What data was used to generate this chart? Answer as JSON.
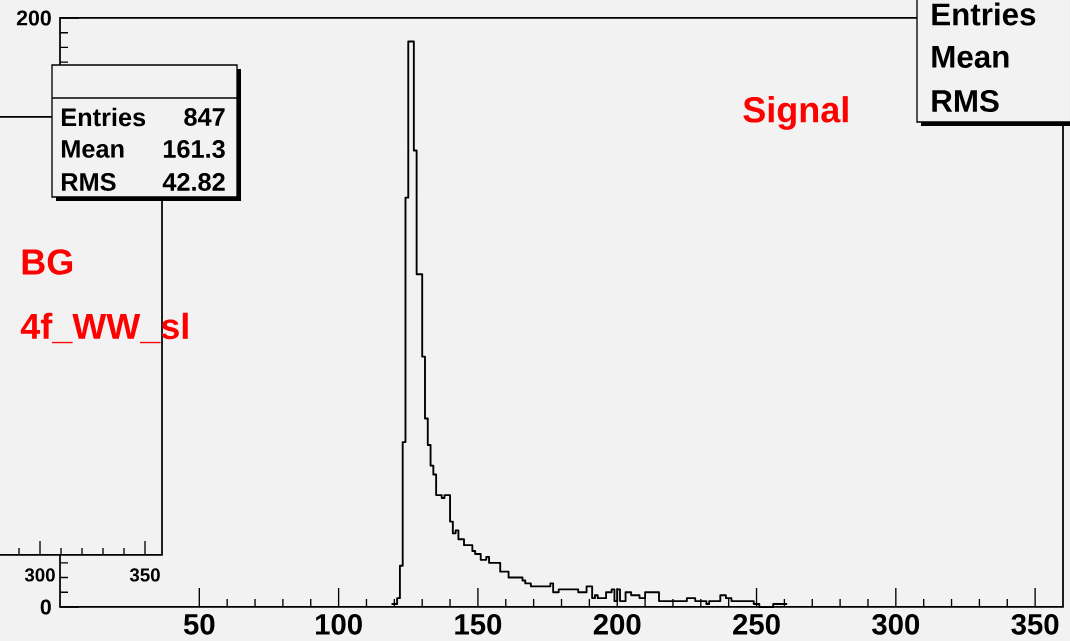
{
  "chart_data": [
    {
      "type": "histogram",
      "color": "#000000",
      "xlim": [
        0,
        360
      ],
      "ylim": [
        0,
        200
      ],
      "xticks": [
        50,
        100,
        150,
        200,
        250,
        300,
        350
      ],
      "yticks": [
        0,
        200
      ],
      "bins": [
        119,
        120,
        121,
        122,
        123,
        124,
        125,
        126,
        127,
        128,
        129,
        130,
        131,
        132,
        133,
        134,
        135,
        136,
        137,
        138,
        139,
        140,
        141,
        142,
        143,
        144,
        145,
        146,
        147,
        148,
        149,
        150,
        151,
        152,
        153,
        154,
        155,
        156,
        157,
        158,
        159,
        160,
        161,
        162,
        163,
        164,
        165,
        166,
        167,
        168,
        169,
        170,
        171,
        172,
        173,
        174,
        175,
        176,
        177,
        178,
        179,
        180,
        181,
        182,
        183,
        184,
        185,
        186,
        187,
        188,
        189,
        190,
        191,
        192,
        193,
        194,
        195,
        196,
        197,
        198,
        199,
        200,
        201,
        202,
        203,
        204,
        205,
        206,
        207,
        208,
        209,
        210,
        211,
        212,
        213,
        214,
        215,
        216,
        217,
        218,
        219,
        220,
        221,
        222,
        223,
        224,
        225,
        226,
        227,
        228,
        229,
        230,
        231,
        232,
        233,
        234,
        235,
        236,
        237,
        238,
        239,
        240,
        241,
        242,
        243,
        244,
        245,
        246,
        247,
        248,
        249,
        250,
        251,
        252,
        253,
        254,
        255,
        256,
        257,
        258,
        259,
        260,
        261
      ],
      "values": [
        1,
        1,
        3,
        14,
        56,
        139,
        192,
        192,
        155,
        113,
        113,
        85,
        64,
        55,
        48,
        45,
        38,
        38,
        37,
        38,
        38,
        29,
        25,
        26,
        23,
        23,
        21,
        21,
        21,
        19,
        18,
        18,
        16,
        16,
        17,
        15,
        15,
        15,
        15,
        12,
        12,
        12,
        10,
        10,
        10,
        10,
        10,
        9,
        8,
        8,
        7,
        7,
        7,
        7,
        7,
        7,
        7,
        8,
        5,
        5,
        6,
        6,
        6,
        6,
        6,
        6,
        6,
        5,
        5,
        5,
        7,
        7,
        3,
        4,
        3,
        3,
        3,
        5,
        5,
        6,
        2,
        6,
        2,
        2,
        5,
        5,
        4,
        4,
        4,
        3,
        3,
        5,
        5,
        5,
        5,
        5,
        2,
        2,
        2,
        2,
        2,
        2,
        2,
        2,
        2,
        2,
        3,
        3,
        3,
        2,
        2,
        2,
        2,
        1,
        2,
        2,
        2,
        2,
        4,
        4,
        3,
        3,
        2,
        2,
        2,
        2,
        2,
        2,
        2,
        2,
        1,
        1,
        0,
        0,
        0,
        0,
        0,
        1,
        1,
        1,
        1,
        1
      ],
      "annotations": [
        "Signal",
        "Entries",
        "Mean",
        "RMS"
      ]
    },
    {
      "type": "other",
      "annotations": [
        "BG",
        "4f_WW_sl",
        "Entries",
        "847",
        "Mean",
        "161.3",
        "RMS",
        "42.82",
        "300",
        "350"
      ]
    }
  ]
}
